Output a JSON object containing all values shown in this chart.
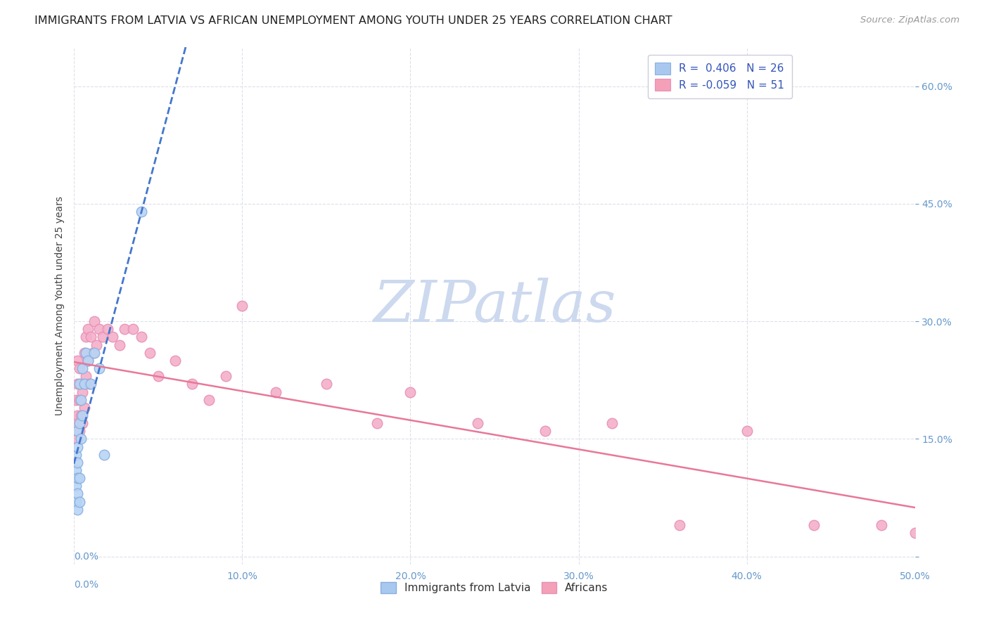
{
  "title": "IMMIGRANTS FROM LATVIA VS AFRICAN UNEMPLOYMENT AMONG YOUTH UNDER 25 YEARS CORRELATION CHART",
  "source": "Source: ZipAtlas.com",
  "ylabel": "Unemployment Among Youth under 25 years",
  "xlim": [
    0.0,
    0.5
  ],
  "ylim": [
    -0.01,
    0.65
  ],
  "watermark": "ZIPatlas",
  "watermark_color": "#ccd9ee",
  "legend_color1": "#a8c8f0",
  "legend_color2": "#f4a0b8",
  "point_color_latvia": "#b8d4f4",
  "point_color_african": "#f4b0c8",
  "point_edge_latvia": "#88b0e0",
  "point_edge_african": "#e890b8",
  "point_size": 110,
  "background_color": "#ffffff",
  "grid_color": "#dde0ea",
  "title_fontsize": 11.5,
  "source_fontsize": 9.5,
  "axis_label_fontsize": 10,
  "tick_fontsize": 10,
  "tick_color": "#6699cc",
  "latvia_x": [
    0.001,
    0.001,
    0.001,
    0.001,
    0.002,
    0.002,
    0.002,
    0.002,
    0.002,
    0.002,
    0.003,
    0.003,
    0.003,
    0.003,
    0.004,
    0.004,
    0.005,
    0.005,
    0.006,
    0.007,
    0.008,
    0.01,
    0.012,
    0.015,
    0.018,
    0.04
  ],
  "latvia_y": [
    0.07,
    0.09,
    0.11,
    0.13,
    0.06,
    0.08,
    0.1,
    0.12,
    0.14,
    0.16,
    0.07,
    0.1,
    0.17,
    0.22,
    0.15,
    0.2,
    0.18,
    0.24,
    0.22,
    0.26,
    0.25,
    0.22,
    0.26,
    0.24,
    0.13,
    0.44
  ],
  "african_x": [
    0.001,
    0.001,
    0.002,
    0.002,
    0.002,
    0.002,
    0.003,
    0.003,
    0.003,
    0.004,
    0.004,
    0.005,
    0.005,
    0.006,
    0.006,
    0.007,
    0.007,
    0.008,
    0.008,
    0.009,
    0.01,
    0.011,
    0.012,
    0.013,
    0.015,
    0.017,
    0.02,
    0.023,
    0.027,
    0.03,
    0.035,
    0.04,
    0.045,
    0.05,
    0.06,
    0.07,
    0.08,
    0.09,
    0.1,
    0.12,
    0.15,
    0.18,
    0.2,
    0.24,
    0.28,
    0.32,
    0.36,
    0.4,
    0.44,
    0.48,
    0.5
  ],
  "african_y": [
    0.17,
    0.2,
    0.15,
    0.18,
    0.22,
    0.25,
    0.16,
    0.2,
    0.24,
    0.18,
    0.22,
    0.17,
    0.21,
    0.26,
    0.19,
    0.28,
    0.23,
    0.25,
    0.29,
    0.22,
    0.28,
    0.26,
    0.3,
    0.27,
    0.29,
    0.28,
    0.29,
    0.28,
    0.27,
    0.29,
    0.29,
    0.28,
    0.26,
    0.23,
    0.25,
    0.22,
    0.2,
    0.23,
    0.32,
    0.21,
    0.22,
    0.17,
    0.21,
    0.17,
    0.16,
    0.17,
    0.04,
    0.16,
    0.04,
    0.04,
    0.03
  ],
  "reg_latvia_color": "#4477cc",
  "reg_african_color": "#e87898",
  "reg_latvia_style": "--",
  "reg_african_style": "-"
}
